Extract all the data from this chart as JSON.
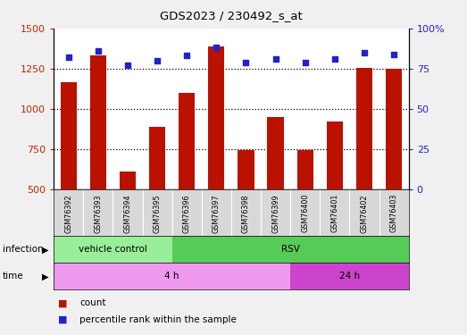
{
  "title": "GDS2023 / 230492_s_at",
  "samples": [
    "GSM76392",
    "GSM76393",
    "GSM76394",
    "GSM76395",
    "GSM76396",
    "GSM76397",
    "GSM76398",
    "GSM76399",
    "GSM76400",
    "GSM76401",
    "GSM76402",
    "GSM76403"
  ],
  "counts": [
    1165,
    1330,
    610,
    890,
    1100,
    1390,
    745,
    950,
    745,
    920,
    1255,
    1250
  ],
  "percentile_ranks": [
    82,
    86,
    77,
    80,
    83,
    88,
    79,
    81,
    79,
    81,
    85,
    84
  ],
  "ylim_left": [
    500,
    1500
  ],
  "ylim_right": [
    0,
    100
  ],
  "yticks_left": [
    500,
    750,
    1000,
    1250,
    1500
  ],
  "yticks_right": [
    0,
    25,
    50,
    75,
    100
  ],
  "ytick_labels_right": [
    "0",
    "25",
    "50",
    "75",
    "100%"
  ],
  "bar_color": "#bb1100",
  "dot_color": "#2222cc",
  "background_color": "#f0f0f0",
  "plot_bg": "#ffffff",
  "label_bg": "#d8d8d8",
  "inf_vc_color": "#99ee99",
  "inf_rsv_color": "#55cc55",
  "time_4h_color": "#ee99ee",
  "time_24h_color": "#cc44cc",
  "legend_count_color": "#bb1100",
  "legend_pct_color": "#2222cc",
  "tick_color_left": "#cc2200",
  "tick_color_right": "#2222cc",
  "grid_yticks": [
    750,
    1000,
    1250
  ]
}
